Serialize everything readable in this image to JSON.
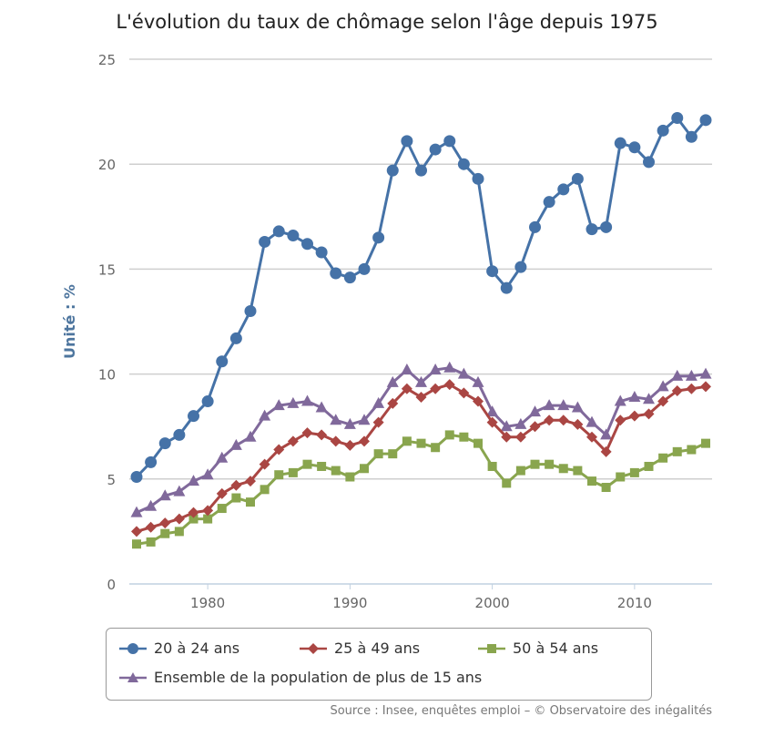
{
  "chart_data": {
    "type": "line",
    "title": "L'évolution du taux de chômage selon l'âge depuis 1975",
    "ylabel": "Unité : %",
    "xlabel": "",
    "xlim": [
      1975,
      2015
    ],
    "ylim": [
      0,
      25
    ],
    "x_ticks": [
      1980,
      1990,
      2000,
      2010
    ],
    "y_ticks": [
      0,
      5,
      10,
      15,
      20,
      25
    ],
    "grid": "horizontal",
    "legend_position": "bottom",
    "x": [
      1975,
      1976,
      1977,
      1978,
      1979,
      1980,
      1981,
      1982,
      1983,
      1984,
      1985,
      1986,
      1987,
      1988,
      1989,
      1990,
      1991,
      1992,
      1993,
      1994,
      1995,
      1996,
      1997,
      1998,
      1999,
      2000,
      2001,
      2002,
      2003,
      2004,
      2005,
      2006,
      2007,
      2008,
      2009,
      2010,
      2011,
      2012,
      2013,
      2014,
      2015
    ],
    "series": [
      {
        "name": "20 à 24 ans",
        "color": "#4572a7",
        "marker": "circle",
        "values": [
          5.1,
          5.8,
          6.7,
          7.1,
          8.0,
          8.7,
          10.6,
          11.7,
          13.0,
          16.3,
          16.8,
          16.6,
          16.2,
          15.8,
          14.8,
          14.6,
          15.0,
          16.5,
          19.7,
          21.1,
          19.7,
          20.7,
          21.1,
          20.0,
          19.3,
          14.9,
          14.1,
          15.1,
          17.0,
          18.2,
          18.8,
          19.3,
          16.9,
          17.0,
          21.0,
          20.8,
          20.1,
          21.6,
          22.2,
          21.3,
          22.1
        ]
      },
      {
        "name": "25 à 49 ans",
        "color": "#aa4643",
        "marker": "diamond",
        "values": [
          2.5,
          2.7,
          2.9,
          3.1,
          3.4,
          3.5,
          4.3,
          4.7,
          4.9,
          5.7,
          6.4,
          6.8,
          7.2,
          7.1,
          6.8,
          6.6,
          6.8,
          7.7,
          8.6,
          9.3,
          8.9,
          9.3,
          9.5,
          9.1,
          8.7,
          7.7,
          7.0,
          7.0,
          7.5,
          7.8,
          7.8,
          7.6,
          7.0,
          6.3,
          7.8,
          8.0,
          8.1,
          8.7,
          9.2,
          9.3,
          9.4
        ]
      },
      {
        "name": "50 à 54 ans",
        "color": "#89a54e",
        "marker": "square",
        "values": [
          1.9,
          2.0,
          2.4,
          2.5,
          3.1,
          3.1,
          3.6,
          4.1,
          3.9,
          4.5,
          5.2,
          5.3,
          5.7,
          5.6,
          5.4,
          5.1,
          5.5,
          6.2,
          6.2,
          6.8,
          6.7,
          6.5,
          7.1,
          7.0,
          6.7,
          5.6,
          4.8,
          5.4,
          5.7,
          5.7,
          5.5,
          5.4,
          4.9,
          4.6,
          5.1,
          5.3,
          5.6,
          6.0,
          6.3,
          6.4,
          6.7
        ]
      },
      {
        "name": "Ensemble de la population de plus de 15 ans",
        "color": "#80699b",
        "marker": "triangle",
        "values": [
          3.4,
          3.7,
          4.2,
          4.4,
          4.9,
          5.2,
          6.0,
          6.6,
          7.0,
          8.0,
          8.5,
          8.6,
          8.7,
          8.4,
          7.8,
          7.6,
          7.8,
          8.6,
          9.6,
          10.2,
          9.6,
          10.2,
          10.3,
          10.0,
          9.6,
          8.2,
          7.5,
          7.6,
          8.2,
          8.5,
          8.5,
          8.4,
          7.7,
          7.1,
          8.7,
          8.9,
          8.8,
          9.4,
          9.9,
          9.9,
          10.0
        ]
      }
    ],
    "source": "Source : Insee, enquêtes emploi – © Observatoire des inégalités"
  }
}
